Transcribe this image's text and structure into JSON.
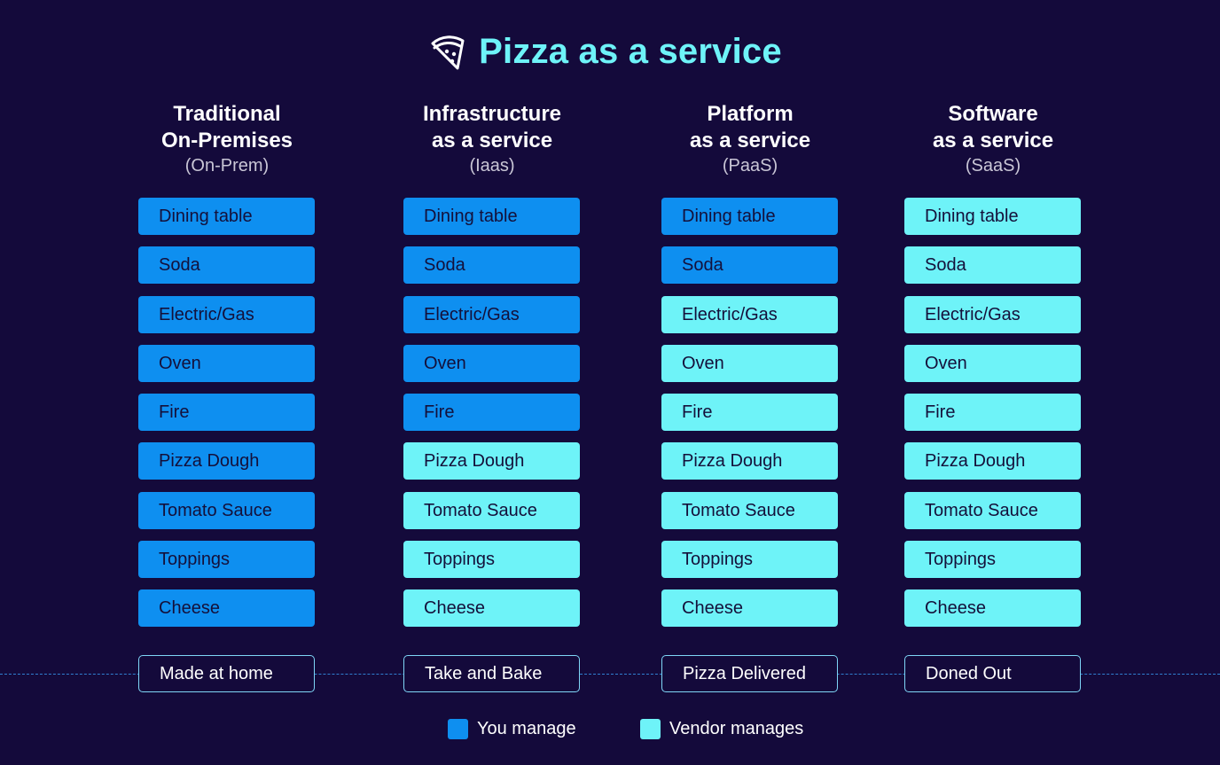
{
  "title": "Pizza as a service",
  "colors": {
    "you": "#0e8ff0",
    "vendor": "#6ef3f8",
    "background": "#140a3b"
  },
  "columns": [
    {
      "heading": [
        "Traditional",
        "On-Premises"
      ],
      "abbr": "(On-Prem)",
      "items": [
        {
          "label": "Dining table",
          "manager": "you"
        },
        {
          "label": "Soda",
          "manager": "you"
        },
        {
          "label": "Electric/Gas",
          "manager": "you"
        },
        {
          "label": "Oven",
          "manager": "you"
        },
        {
          "label": "Fire",
          "manager": "you"
        },
        {
          "label": "Pizza Dough",
          "manager": "you"
        },
        {
          "label": "Tomato Sauce",
          "manager": "you"
        },
        {
          "label": "Toppings",
          "manager": "you"
        },
        {
          "label": "Cheese",
          "manager": "you"
        }
      ],
      "footer": "Made at home"
    },
    {
      "heading": [
        "Infrastructure",
        "as a service"
      ],
      "abbr": "(Iaas)",
      "items": [
        {
          "label": "Dining table",
          "manager": "you"
        },
        {
          "label": "Soda",
          "manager": "you"
        },
        {
          "label": "Electric/Gas",
          "manager": "you"
        },
        {
          "label": "Oven",
          "manager": "you"
        },
        {
          "label": "Fire",
          "manager": "you"
        },
        {
          "label": "Pizza Dough",
          "manager": "vendor"
        },
        {
          "label": "Tomato Sauce",
          "manager": "vendor"
        },
        {
          "label": "Toppings",
          "manager": "vendor"
        },
        {
          "label": "Cheese",
          "manager": "vendor"
        }
      ],
      "footer": "Take and Bake"
    },
    {
      "heading": [
        "Platform",
        "as a service"
      ],
      "abbr": "(PaaS)",
      "items": [
        {
          "label": "Dining table",
          "manager": "you"
        },
        {
          "label": "Soda",
          "manager": "you"
        },
        {
          "label": "Electric/Gas",
          "manager": "vendor"
        },
        {
          "label": "Oven",
          "manager": "vendor"
        },
        {
          "label": "Fire",
          "manager": "vendor"
        },
        {
          "label": "Pizza Dough",
          "manager": "vendor"
        },
        {
          "label": "Tomato Sauce",
          "manager": "vendor"
        },
        {
          "label": "Toppings",
          "manager": "vendor"
        },
        {
          "label": "Cheese",
          "manager": "vendor"
        }
      ],
      "footer": "Pizza Delivered"
    },
    {
      "heading": [
        "Software",
        "as a service"
      ],
      "abbr": "(SaaS)",
      "items": [
        {
          "label": "Dining table",
          "manager": "vendor"
        },
        {
          "label": "Soda",
          "manager": "vendor"
        },
        {
          "label": "Electric/Gas",
          "manager": "vendor"
        },
        {
          "label": "Oven",
          "manager": "vendor"
        },
        {
          "label": "Fire",
          "manager": "vendor"
        },
        {
          "label": "Pizza Dough",
          "manager": "vendor"
        },
        {
          "label": "Tomato Sauce",
          "manager": "vendor"
        },
        {
          "label": "Toppings",
          "manager": "vendor"
        },
        {
          "label": "Cheese",
          "manager": "vendor"
        }
      ],
      "footer": "Doned Out"
    }
  ],
  "legend": {
    "you_label": "You manage",
    "vendor_label": "Vendor manages"
  }
}
